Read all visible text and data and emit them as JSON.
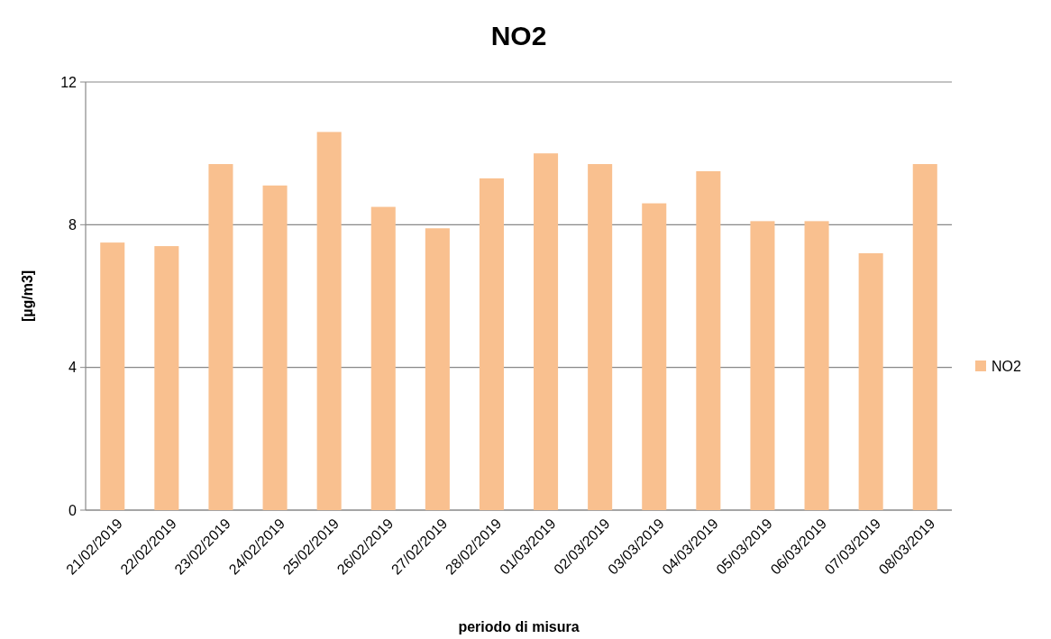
{
  "chart_data": {
    "type": "bar",
    "title": "NO2",
    "xlabel": "periodo di misura",
    "ylabel": "[µg/m3]",
    "categories": [
      "21/02/2019",
      "22/02/2019",
      "23/02/2019",
      "24/02/2019",
      "25/02/2019",
      "26/02/2019",
      "27/02/2019",
      "28/02/2019",
      "01/03/2019",
      "02/03/2019",
      "03/03/2019",
      "04/03/2019",
      "05/03/2019",
      "06/03/2019",
      "07/03/2019",
      "08/03/2019"
    ],
    "series": [
      {
        "name": "NO2",
        "color": "#f9c08f",
        "values": [
          7.5,
          7.4,
          9.7,
          9.1,
          10.6,
          8.5,
          7.9,
          9.3,
          10.0,
          9.7,
          8.6,
          9.5,
          8.1,
          8.1,
          7.2,
          9.7
        ]
      }
    ],
    "ylim": [
      0,
      12
    ],
    "yticks": [
      0,
      4,
      8,
      12
    ],
    "grid": "y",
    "legend": "right"
  }
}
